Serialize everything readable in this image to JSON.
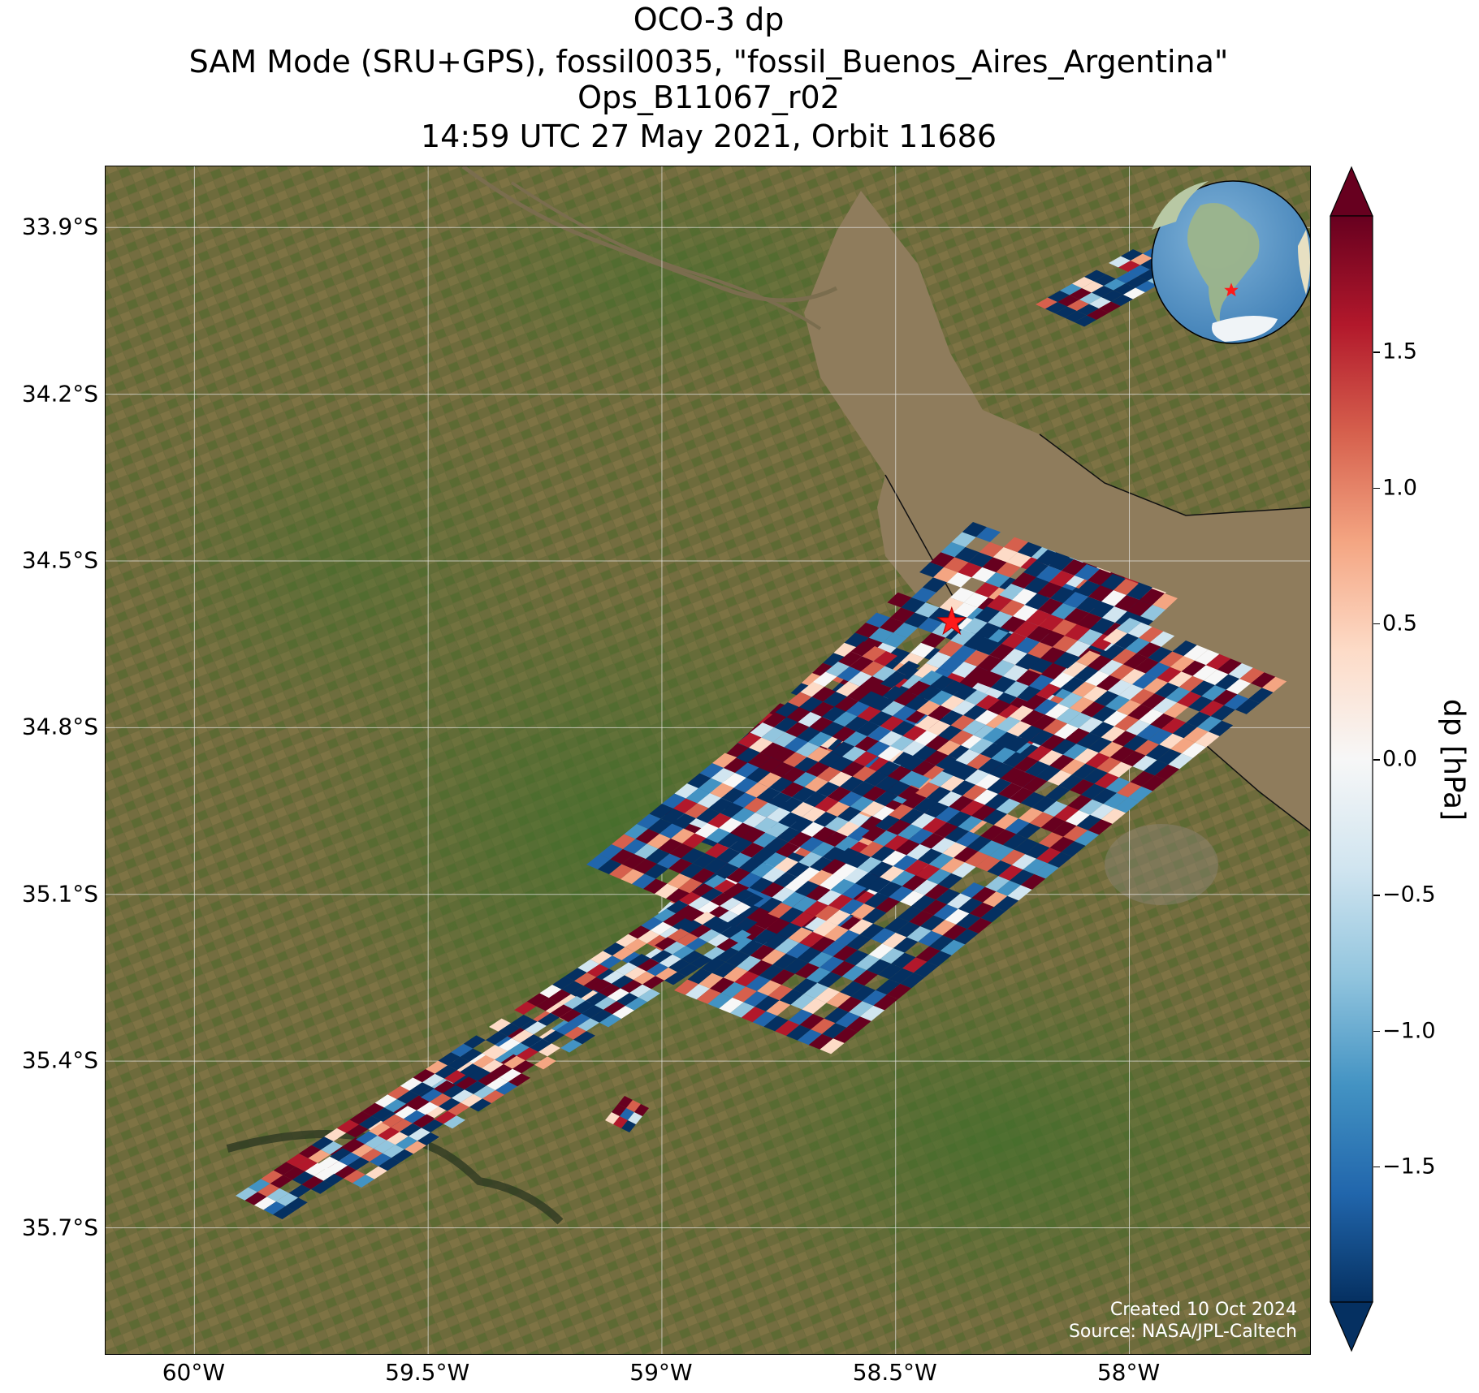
{
  "title": {
    "line1": "OCO-3 dp",
    "line2": "SAM Mode (SRU+GPS), fossil0035, \"fossil_Buenos_Aires_Argentina\"",
    "line3": "Ops_B11067_r02",
    "line4": "14:59 UTC 27 May 2021, Orbit 11686"
  },
  "axes": {
    "lat_ticks": [
      "33.9°S",
      "34.2°S",
      "34.5°S",
      "34.8°S",
      "35.1°S",
      "35.4°S",
      "35.7°S"
    ],
    "lat_values": [
      -33.9,
      -34.2,
      -34.5,
      -34.8,
      -35.1,
      -35.4,
      -35.7
    ],
    "lon_ticks": [
      "60°W",
      "59.5°W",
      "59°W",
      "58.5°W",
      "58°W"
    ],
    "lon_values": [
      -60.0,
      -59.5,
      -59.0,
      -58.5,
      -58.0
    ],
    "lat_range": [
      -35.93,
      -33.79
    ],
    "lon_range": [
      -60.19,
      -57.61
    ],
    "grid": true
  },
  "colorbar": {
    "label": "dp [hPa]",
    "ticks": [
      "1.5",
      "1.0",
      "0.5",
      "0.0",
      "−0.5",
      "−1.0",
      "−1.5"
    ],
    "tick_values": [
      1.5,
      1.0,
      0.5,
      0.0,
      -0.5,
      -1.0,
      -1.5
    ],
    "range": [
      -2.0,
      2.0
    ],
    "extend": "both",
    "colormap": "RdBu_r",
    "colors": [
      "#053061",
      "#2166ac",
      "#4393c3",
      "#92c5de",
      "#d1e5f0",
      "#f7f7f7",
      "#fddbc7",
      "#f4a582",
      "#d6604d",
      "#b2182b",
      "#67001f"
    ]
  },
  "target": {
    "name": "fossil_Buenos_Aires_Argentina",
    "lon": -58.38,
    "lat": -34.61,
    "marker": "red-star"
  },
  "inset": {
    "description_icon": "globe-south-america-icon",
    "marker": "red-star"
  },
  "credit": {
    "line1": "Created 10 Oct 2024",
    "line2": "Source: NASA/JPL-Caltech"
  },
  "map_colors": {
    "land": "#6b6a3a",
    "water": "#8e7c5e",
    "grid": "#e8e8e8"
  }
}
